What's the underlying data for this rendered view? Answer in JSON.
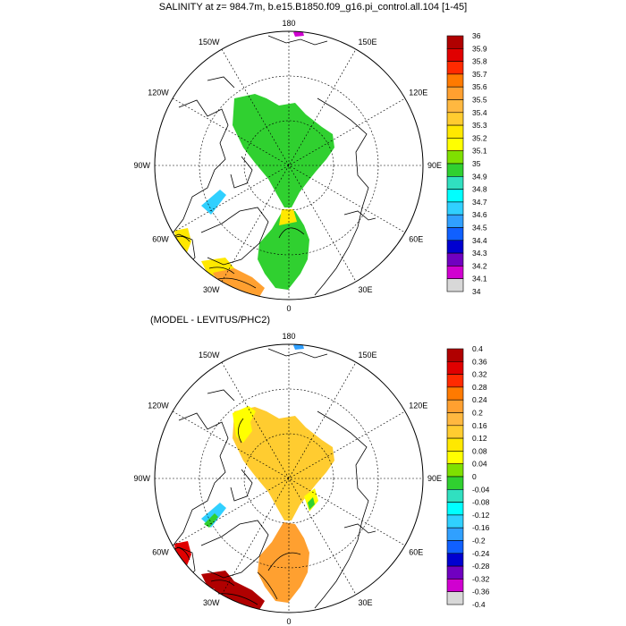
{
  "panels": [
    {
      "title": "SALINITY at z= 984.7m, b.e15.B1850.f09_g16.pi_control.all.104 [1-45]",
      "lon_labels": [
        "180",
        "150E",
        "120E",
        "90E",
        "60E",
        "30E",
        "0",
        "30W",
        "60W",
        "90W",
        "120W",
        "150W"
      ],
      "colorbar": {
        "labels": [
          "36",
          "35.9",
          "35.8",
          "35.7",
          "35.6",
          "35.5",
          "35.4",
          "35.3",
          "35.2",
          "35.1",
          "35",
          "34.9",
          "34.8",
          "34.7",
          "34.6",
          "34.5",
          "34.4",
          "34.3",
          "34.2",
          "34.1",
          "34"
        ],
        "colors": [
          "#b00000",
          "#e00000",
          "#ff2a00",
          "#ff7a00",
          "#ffa030",
          "#ffb840",
          "#ffcc30",
          "#ffe800",
          "#ffff00",
          "#7fe000",
          "#30d030",
          "#30e0c0",
          "#00ffff",
          "#30d0ff",
          "#30a0ff",
          "#1060ff",
          "#0000d0",
          "#7000c0",
          "#d000d0",
          "#d8d8d8",
          "#707070"
        ]
      }
    },
    {
      "title": "(MODEL - LEVITUS/PHC2)",
      "lon_labels": [
        "180",
        "150E",
        "120E",
        "90E",
        "60E",
        "30E",
        "0",
        "30W",
        "60W",
        "90W",
        "120W",
        "150W"
      ],
      "colorbar": {
        "labels": [
          "0.4",
          "0.36",
          "0.32",
          "0.28",
          "0.24",
          "0.2",
          "0.16",
          "0.12",
          "0.08",
          "0.04",
          "0",
          "-0.04",
          "-0.08",
          "-0.12",
          "-0.16",
          "-0.2",
          "-0.24",
          "-0.28",
          "-0.32",
          "-0.36",
          "-0.4"
        ],
        "colors": [
          "#b00000",
          "#e00000",
          "#ff2a00",
          "#ff7a00",
          "#ffa030",
          "#ffb840",
          "#ffcc30",
          "#ffe800",
          "#ffff00",
          "#7fe000",
          "#30d030",
          "#30e0c0",
          "#00ffff",
          "#30d0ff",
          "#30a0ff",
          "#1060ff",
          "#0000d0",
          "#7000c0",
          "#d000d0",
          "#d8d8d8",
          "#707070"
        ]
      }
    }
  ]
}
